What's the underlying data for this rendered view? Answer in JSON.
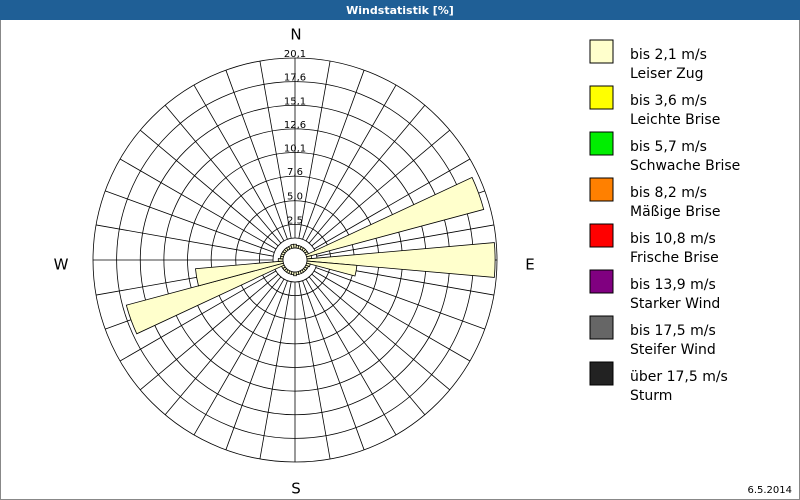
{
  "chart_data": {
    "type": "windrose",
    "title": "Windstatistik [%]",
    "directions": [
      "N",
      "E",
      "S",
      "W"
    ],
    "date": "6.5.2014",
    "rlim": [
      0,
      20.1
    ],
    "rticks": [
      {
        "value": 2.5,
        "label": "2,5"
      },
      {
        "value": 5.0,
        "label": "5,0"
      },
      {
        "value": 7.6,
        "label": "7,6"
      },
      {
        "value": 10.1,
        "label": "10,1"
      },
      {
        "value": 12.6,
        "label": "12,6"
      },
      {
        "value": 15.1,
        "label": "15,1"
      },
      {
        "value": 17.6,
        "label": "17,6"
      },
      {
        "value": 20.1,
        "label": "20,1"
      }
    ],
    "angles": [
      0,
      10,
      20,
      30,
      40,
      50,
      60,
      70,
      80,
      90,
      100,
      110,
      120,
      130,
      140,
      150,
      160,
      170,
      180,
      190,
      200,
      210,
      220,
      230,
      240,
      250,
      260,
      270,
      280,
      290,
      300,
      310,
      320,
      330,
      340,
      350
    ],
    "series": [
      {
        "name": "bis 2,1 m/s",
        "description": "Leiser Zug",
        "color": "#ffffcc",
        "values": [
          0.4,
          0.3,
          0.3,
          0.3,
          0.3,
          0.3,
          0.3,
          19.4,
          0.5,
          19.9,
          5.3,
          0.4,
          0.3,
          0.3,
          0.3,
          0.3,
          0.3,
          0.3,
          0.4,
          0.3,
          0.3,
          0.3,
          0.3,
          0.3,
          0.3,
          17.2,
          9.3,
          0.5,
          0.3,
          0.3,
          0.3,
          0.3,
          0.3,
          0.3,
          0.3,
          0.4
        ]
      },
      {
        "name": "bis 3,6 m/s",
        "description": "Leichte Brise",
        "color": "#ffff00"
      },
      {
        "name": "bis 5,7 m/s",
        "description": "Schwache Brise",
        "color": "#00ee00"
      },
      {
        "name": "bis 8,2 m/s",
        "description": "Mäßige Brise",
        "color": "#ff8000"
      },
      {
        "name": "bis 10,8 m/s",
        "description": "Frische Brise",
        "color": "#ff0000"
      },
      {
        "name": "bis 13,9 m/s",
        "description": "Starker Wind",
        "color": "#800080"
      },
      {
        "name": "bis 17,5 m/s",
        "description": "Steifer Wind",
        "color": "#666666"
      },
      {
        "name": "über 17,5 m/s",
        "description": "Sturm",
        "color": "#222222"
      }
    ]
  }
}
